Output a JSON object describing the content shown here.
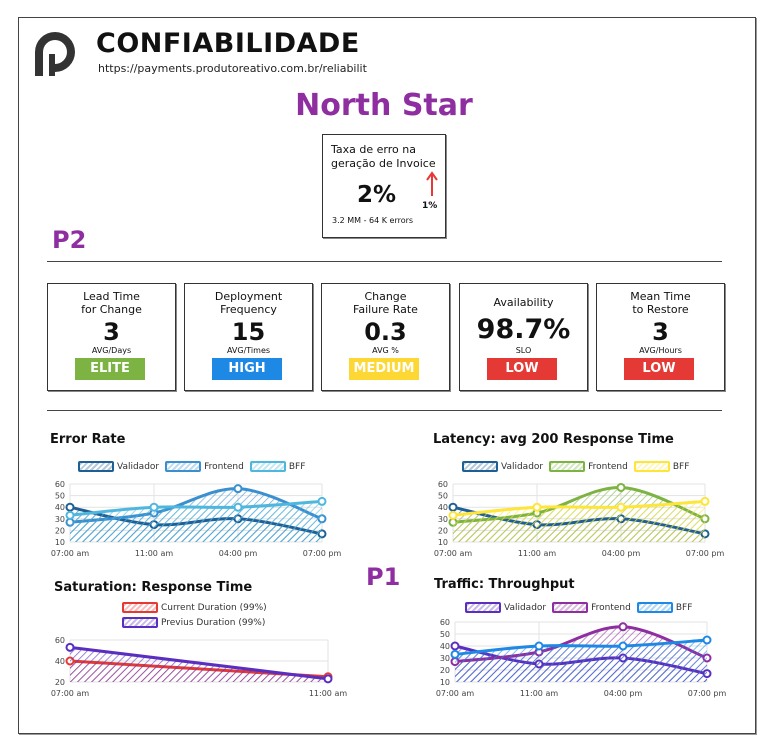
{
  "header": {
    "title": "CONFIABILIDADE",
    "url": "https://payments.produtoreativo.com.br/reliabilit",
    "logo_icon": "p-logo-icon"
  },
  "north_star": {
    "heading": "North Star",
    "card": {
      "label_line1": "Taxa de erro na",
      "label_line2": "geração de Invoice",
      "value": "2%",
      "delta": "1%",
      "delta_icon": "arrow-up-icon",
      "delta_color": "#e53935",
      "subtitle": "3.2 MM - 64 K errors"
    }
  },
  "p2": {
    "heading": "P2",
    "kpis": [
      {
        "label_line1": "Lead Time",
        "label_line2": "for Change",
        "value": "3",
        "unit": "AVG/Days",
        "badge": "ELITE",
        "badge_color": "#7cb342"
      },
      {
        "label_line1": "Deployment",
        "label_line2": "Frequency",
        "value": "15",
        "unit": "AVG/Times",
        "badge": "HIGH",
        "badge_color": "#1e88e5"
      },
      {
        "label_line1": "Change",
        "label_line2": "Failure Rate",
        "value": "0.3",
        "unit": "AVG %",
        "badge": "MEDIUM",
        "badge_color": "#fdd835"
      },
      {
        "label_line1": "Availability",
        "label_line2": "",
        "value": "98.7%",
        "unit": "SLO",
        "badge": "LOW",
        "badge_color": "#e53935"
      },
      {
        "label_line1": "Mean Time",
        "label_line2": "to Restore",
        "value": "3",
        "unit": "AVG/Hours",
        "badge": "LOW",
        "badge_color": "#e53935"
      }
    ]
  },
  "p1": {
    "heading": "P1"
  },
  "chart_data": [
    {
      "type": "area",
      "title": "Error Rate",
      "categories": [
        "07:00 am",
        "11:00 am",
        "04:00 pm",
        "07:00 pm"
      ],
      "yticks": [
        10,
        20,
        30,
        40,
        50,
        60
      ],
      "ylim": [
        10,
        60
      ],
      "legend_position": "top",
      "series": [
        {
          "name": "Validador",
          "color": "#1f5f94",
          "values": [
            40,
            25,
            30,
            17
          ]
        },
        {
          "name": "Frontend",
          "color": "#3a8fcf",
          "values": [
            27,
            35,
            56,
            30
          ]
        },
        {
          "name": "BFF",
          "color": "#4fb7de",
          "values": [
            33,
            40,
            40,
            45
          ]
        }
      ]
    },
    {
      "type": "area",
      "title": "Latency: avg 200 Response Time",
      "categories": [
        "07:00 am",
        "11:00 am",
        "04:00 pm",
        "07:00 pm"
      ],
      "yticks": [
        10,
        20,
        30,
        40,
        50,
        60
      ],
      "ylim": [
        10,
        60
      ],
      "legend_position": "top",
      "series": [
        {
          "name": "Validador",
          "color": "#1f5f94",
          "values": [
            40,
            25,
            30,
            17
          ]
        },
        {
          "name": "Frontend",
          "color": "#7cb342",
          "values": [
            27,
            35,
            57,
            30
          ]
        },
        {
          "name": "BFF",
          "color": "#fde53a",
          "values": [
            33,
            40,
            40,
            45
          ]
        }
      ]
    },
    {
      "type": "area",
      "title": "Saturation: Response Time",
      "categories": [
        "07:00 am",
        "11:00 am"
      ],
      "yticks": [
        20,
        40,
        60
      ],
      "ylim": [
        20,
        60
      ],
      "legend_position": "top",
      "series": [
        {
          "name": "Current Duration (99%)",
          "color": "#e53935",
          "values": [
            40,
            25
          ]
        },
        {
          "name": "Previus Duration (99%)",
          "color": "#5a2fbf",
          "values": [
            53,
            23
          ]
        }
      ]
    },
    {
      "type": "area",
      "title": "Traffic: Throughput",
      "categories": [
        "07:00 am",
        "11:00 am",
        "04:00 pm",
        "07:00 pm"
      ],
      "yticks": [
        10,
        20,
        30,
        40,
        50,
        60
      ],
      "ylim": [
        10,
        60
      ],
      "legend_position": "top",
      "series": [
        {
          "name": "Validador",
          "color": "#5a2fbf",
          "values": [
            40,
            25,
            30,
            17
          ]
        },
        {
          "name": "Frontend",
          "color": "#8e2ea0",
          "values": [
            27,
            35,
            56,
            30
          ]
        },
        {
          "name": "BFF",
          "color": "#1e88e5",
          "values": [
            33,
            40,
            40,
            45
          ]
        }
      ]
    }
  ]
}
